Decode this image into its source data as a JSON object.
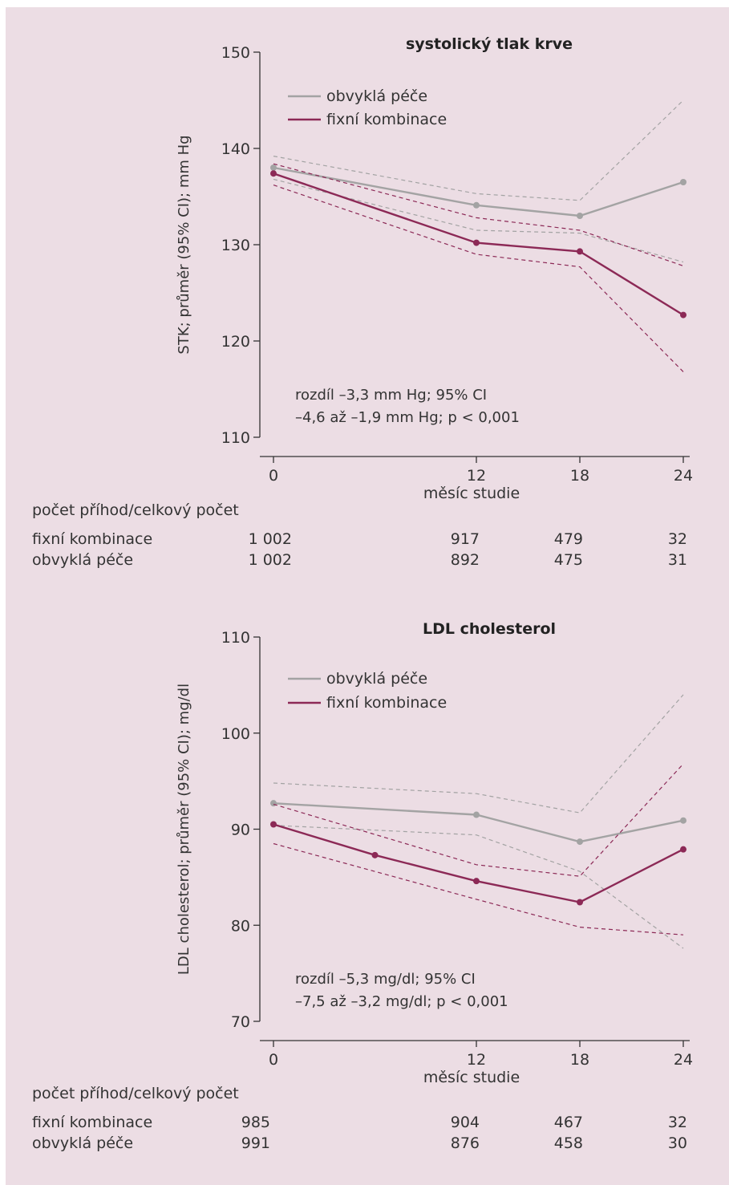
{
  "chart_data": [
    {
      "type": "line",
      "title": "systolický tlak krve",
      "xlabel": "měsíc studie",
      "ylabel": "STK; průměr (95% CI); mm Hg",
      "ylim": [
        110,
        150
      ],
      "yticks": [
        "110",
        "120",
        "130",
        "140",
        "150"
      ],
      "xticks": [
        "0",
        "12",
        "18",
        "24"
      ],
      "legend_position": "top-left",
      "colors": {
        "usual": "#a3a3a3",
        "fixed": "#8c2956"
      },
      "series": [
        {
          "name": "obvyklá péče",
          "key": "usual",
          "x": [
            0,
            12,
            18,
            24
          ],
          "mean": [
            138.0,
            134.1,
            133.0,
            136.5
          ],
          "ci_upper": [
            139.2,
            135.3,
            134.6,
            145.0
          ],
          "ci_lower": [
            136.8,
            131.5,
            131.2,
            128.2
          ]
        },
        {
          "name": "fixní kombinace",
          "key": "fixed",
          "x": [
            0,
            12,
            18,
            24
          ],
          "mean": [
            137.4,
            130.2,
            129.3,
            122.7
          ],
          "ci_upper": [
            138.4,
            132.8,
            131.5,
            127.8
          ],
          "ci_lower": [
            136.2,
            129.0,
            127.7,
            116.8
          ]
        }
      ],
      "annotation": [
        "rozdíl –3,3 mm Hg; 95% CI",
        "–4,6 až –1,9 mm Hg; p < 0,001"
      ],
      "table": {
        "header": "počet příhod/celkový počet",
        "rows": [
          {
            "label": "fixní kombinace",
            "values": [
              "1 002",
              "917",
              "479",
              "32"
            ]
          },
          {
            "label": "obvyklá péče",
            "values": [
              "1 002",
              "892",
              "475",
              "31"
            ]
          }
        ]
      }
    },
    {
      "type": "line",
      "title": "LDL cholesterol",
      "xlabel": "měsíc studie",
      "ylabel": "LDL cholesterol; průměr (95% CI); mg/dl",
      "ylim": [
        70,
        110
      ],
      "yticks": [
        "70",
        "80",
        "90",
        "100",
        "110"
      ],
      "xticks": [
        "0",
        "12",
        "18",
        "24"
      ],
      "legend_position": "top-left",
      "colors": {
        "usual": "#a3a3a3",
        "fixed": "#8c2956"
      },
      "series": [
        {
          "name": "obvyklá péče",
          "key": "usual",
          "x": [
            0,
            12,
            18,
            24
          ],
          "mean": [
            92.7,
            91.5,
            88.7,
            90.9
          ],
          "ci_upper": [
            94.8,
            93.7,
            91.7,
            104.0
          ],
          "ci_lower": [
            90.4,
            89.4,
            85.6,
            77.6
          ]
        },
        {
          "name": "fixní kombinace",
          "key": "fixed",
          "x": [
            0,
            6,
            12,
            18,
            24
          ],
          "mean": [
            90.5,
            87.3,
            84.6,
            82.4,
            87.9
          ],
          "ci_upper": [
            92.6,
            null,
            86.3,
            85.1,
            96.8
          ],
          "ci_lower": [
            88.5,
            null,
            82.7,
            79.8,
            79.0
          ]
        }
      ],
      "annotation": [
        "rozdíl –5,3 mg/dl; 95% CI",
        "–7,5 až –3,2 mg/dl; p < 0,001"
      ],
      "table": {
        "header": "počet příhod/celkový počet",
        "rows": [
          {
            "label": "fixní kombinace",
            "values": [
              "985",
              "904",
              "467",
              "32"
            ]
          },
          {
            "label": "obvyklá péče",
            "values": [
              "991",
              "876",
              "458",
              "30"
            ]
          }
        ]
      }
    }
  ]
}
